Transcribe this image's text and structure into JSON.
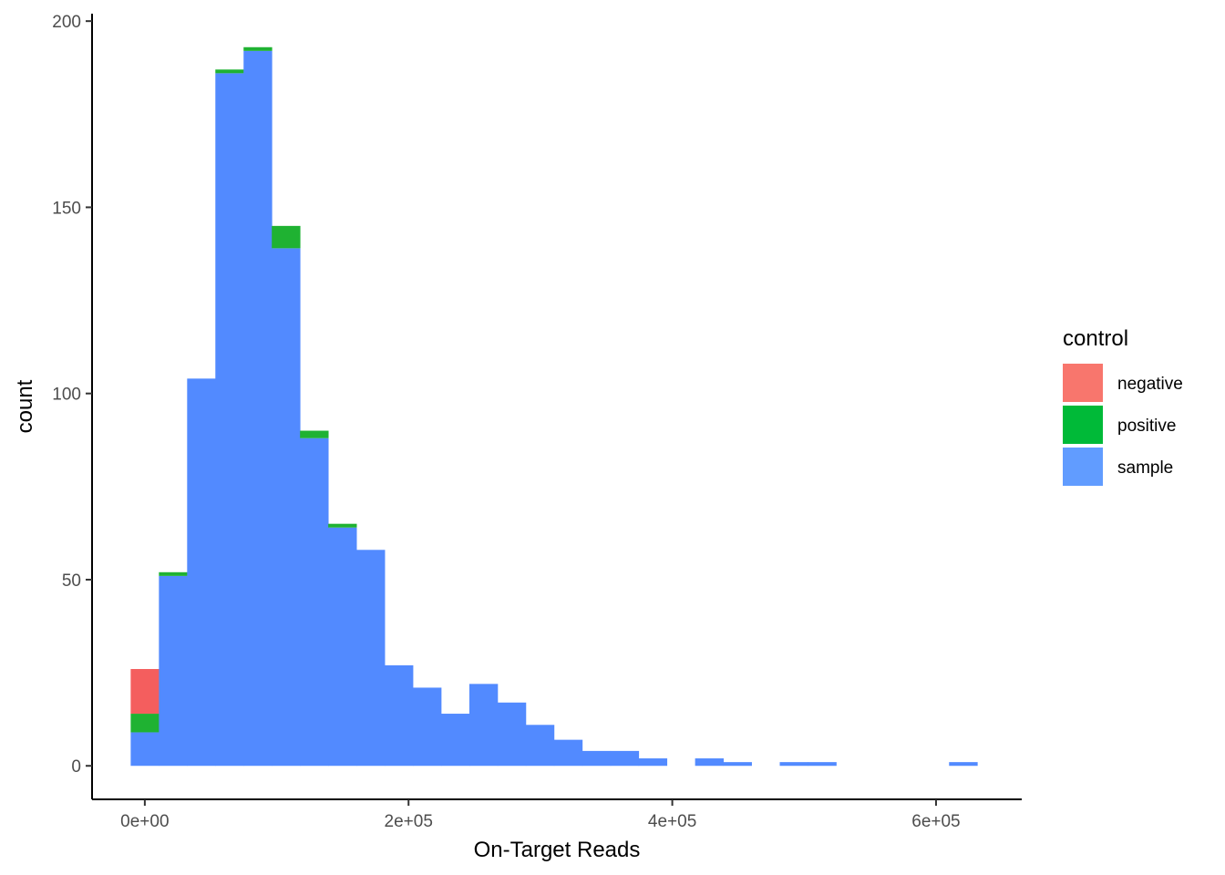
{
  "chart_data": {
    "type": "bar",
    "subtype": "stacked-histogram",
    "xlabel": "On-Target Reads",
    "ylabel": "count",
    "xlim": [
      -40000,
      665000
    ],
    "ylim": [
      -9,
      202
    ],
    "x_ticks": [
      {
        "value": 0,
        "label": "0e+00"
      },
      {
        "value": 200000,
        "label": "2e+05"
      },
      {
        "value": 400000,
        "label": "4e+05"
      },
      {
        "value": 600000,
        "label": "6e+05"
      }
    ],
    "y_ticks": [
      {
        "value": 0,
        "label": "0"
      },
      {
        "value": 50,
        "label": "50"
      },
      {
        "value": 100,
        "label": "100"
      },
      {
        "value": 150,
        "label": "150"
      },
      {
        "value": 200,
        "label": "200"
      }
    ],
    "bin_start": -10700,
    "bin_width": 21400,
    "legend": {
      "title": "control",
      "position": "right",
      "entries": [
        {
          "name": "negative",
          "color": "#F8766D"
        },
        {
          "name": "positive",
          "color": "#00BA38"
        },
        {
          "name": "sample",
          "color": "#619CFF"
        }
      ]
    },
    "series": [
      {
        "name": "sample",
        "color": "#528AFF",
        "values": [
          9,
          51,
          104,
          186,
          192,
          139,
          88,
          64,
          58,
          27,
          21,
          14,
          22,
          17,
          11,
          7,
          4,
          4,
          2,
          0,
          2,
          1,
          0,
          1,
          1,
          0,
          0,
          0,
          0,
          1
        ]
      },
      {
        "name": "positive",
        "color": "#1FB232",
        "values": [
          5,
          1,
          0,
          1,
          1,
          6,
          2,
          1,
          0,
          0,
          0,
          0,
          0,
          0,
          0,
          0,
          0,
          0,
          0,
          0,
          0,
          0,
          0,
          0,
          0,
          0,
          0,
          0,
          0,
          0
        ]
      },
      {
        "name": "negative",
        "color": "#F45E5E",
        "values": [
          12,
          0,
          0,
          0,
          0,
          0,
          0,
          0,
          0,
          0,
          0,
          0,
          0,
          0,
          0,
          0,
          0,
          0,
          0,
          0,
          0,
          0,
          0,
          0,
          0,
          0,
          0,
          0,
          0,
          0
        ]
      }
    ]
  }
}
